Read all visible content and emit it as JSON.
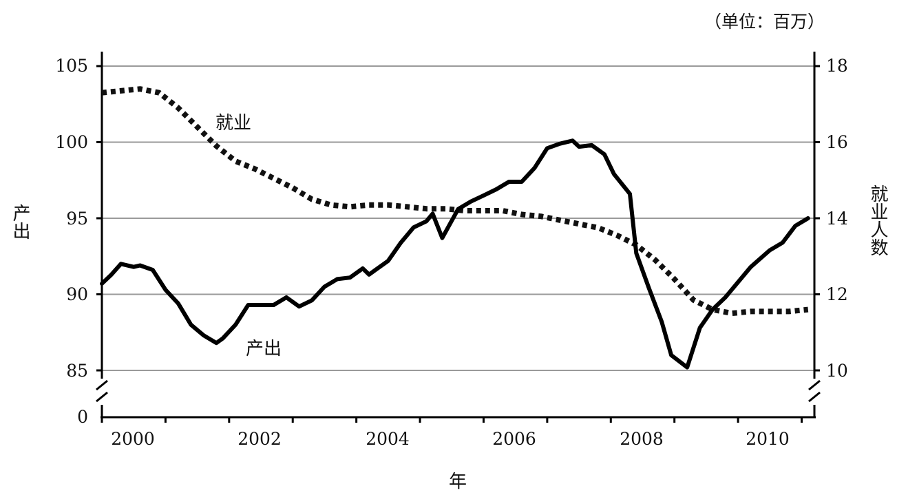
{
  "chart_data": {
    "type": "line",
    "unit_note": "（单位：百万）",
    "xlabel": "年",
    "left_axis_label": "产出",
    "right_axis_label": "就业人数",
    "x_ticks": [
      "2000",
      "2002",
      "2004",
      "2006",
      "2008",
      "2010"
    ],
    "left_ticks": [
      "105",
      "100",
      "95",
      "90",
      "85"
    ],
    "left_zero_tick": "0",
    "right_ticks": [
      "18",
      "16",
      "14",
      "12",
      "10"
    ],
    "left_ylim": [
      85,
      105
    ],
    "right_ylim": [
      10,
      18
    ],
    "xlim": [
      2000,
      2011.2
    ],
    "axis_break": true,
    "grid": true,
    "series": [
      {
        "name": "产出",
        "axis": "left",
        "style": "solid",
        "x": [
          2000.0,
          2000.15,
          2000.3,
          2000.5,
          2000.6,
          2000.8,
          2001.0,
          2001.2,
          2001.4,
          2001.6,
          2001.8,
          2001.9,
          2002.1,
          2002.3,
          2002.5,
          2002.7,
          2002.9,
          2003.1,
          2003.3,
          2003.5,
          2003.7,
          2003.9,
          2004.1,
          2004.2,
          2004.3,
          2004.5,
          2004.7,
          2004.9,
          2005.1,
          2005.2,
          2005.35,
          2005.6,
          2005.8,
          2006.0,
          2006.2,
          2006.4,
          2006.6,
          2006.8,
          2007.0,
          2007.2,
          2007.4,
          2007.5,
          2007.7,
          2007.9,
          2008.05,
          2008.3,
          2008.4,
          2008.6,
          2008.8,
          2008.95,
          2009.2,
          2009.4,
          2009.6,
          2009.8,
          2010.0,
          2010.2,
          2010.5,
          2010.7,
          2010.9,
          2011.1
        ],
        "values": [
          90.7,
          91.3,
          92.0,
          91.8,
          91.9,
          91.6,
          90.3,
          89.4,
          88.0,
          87.3,
          86.8,
          87.1,
          88.0,
          89.3,
          89.3,
          89.3,
          89.8,
          89.2,
          89.6,
          90.5,
          91.0,
          91.1,
          91.7,
          91.3,
          91.6,
          92.2,
          93.4,
          94.4,
          94.8,
          95.3,
          93.7,
          95.6,
          96.1,
          96.5,
          96.9,
          97.4,
          97.4,
          98.3,
          99.6,
          99.9,
          100.1,
          99.7,
          99.8,
          99.2,
          97.9,
          96.6,
          92.7,
          90.4,
          88.2,
          86.0,
          85.2,
          87.8,
          89.0,
          89.8,
          90.8,
          91.8,
          92.9,
          93.4,
          94.5,
          95.0
        ]
      },
      {
        "name": "就业",
        "axis": "right",
        "style": "dotted",
        "x": [
          2000.0,
          2000.3,
          2000.6,
          2000.9,
          2001.2,
          2001.5,
          2001.8,
          2002.1,
          2002.4,
          2002.7,
          2003.0,
          2003.3,
          2003.6,
          2003.9,
          2004.2,
          2004.5,
          2004.8,
          2005.1,
          2005.4,
          2005.7,
          2006.0,
          2006.3,
          2006.6,
          2006.9,
          2007.2,
          2007.5,
          2007.8,
          2008.1,
          2008.4,
          2008.7,
          2009.0,
          2009.3,
          2009.6,
          2009.9,
          2010.2,
          2010.5,
          2010.8,
          2011.1
        ],
        "values": [
          17.3,
          17.35,
          17.4,
          17.3,
          16.9,
          16.4,
          15.9,
          15.5,
          15.3,
          15.05,
          14.8,
          14.5,
          14.35,
          14.3,
          14.35,
          14.35,
          14.3,
          14.25,
          14.25,
          14.2,
          14.2,
          14.2,
          14.1,
          14.05,
          13.95,
          13.85,
          13.75,
          13.55,
          13.3,
          12.9,
          12.4,
          11.85,
          11.6,
          11.5,
          11.55,
          11.55,
          11.55,
          11.6
        ]
      }
    ],
    "annotations": [
      {
        "text": "就业",
        "series": "就业"
      },
      {
        "text": "产出",
        "series": "产出"
      }
    ]
  }
}
